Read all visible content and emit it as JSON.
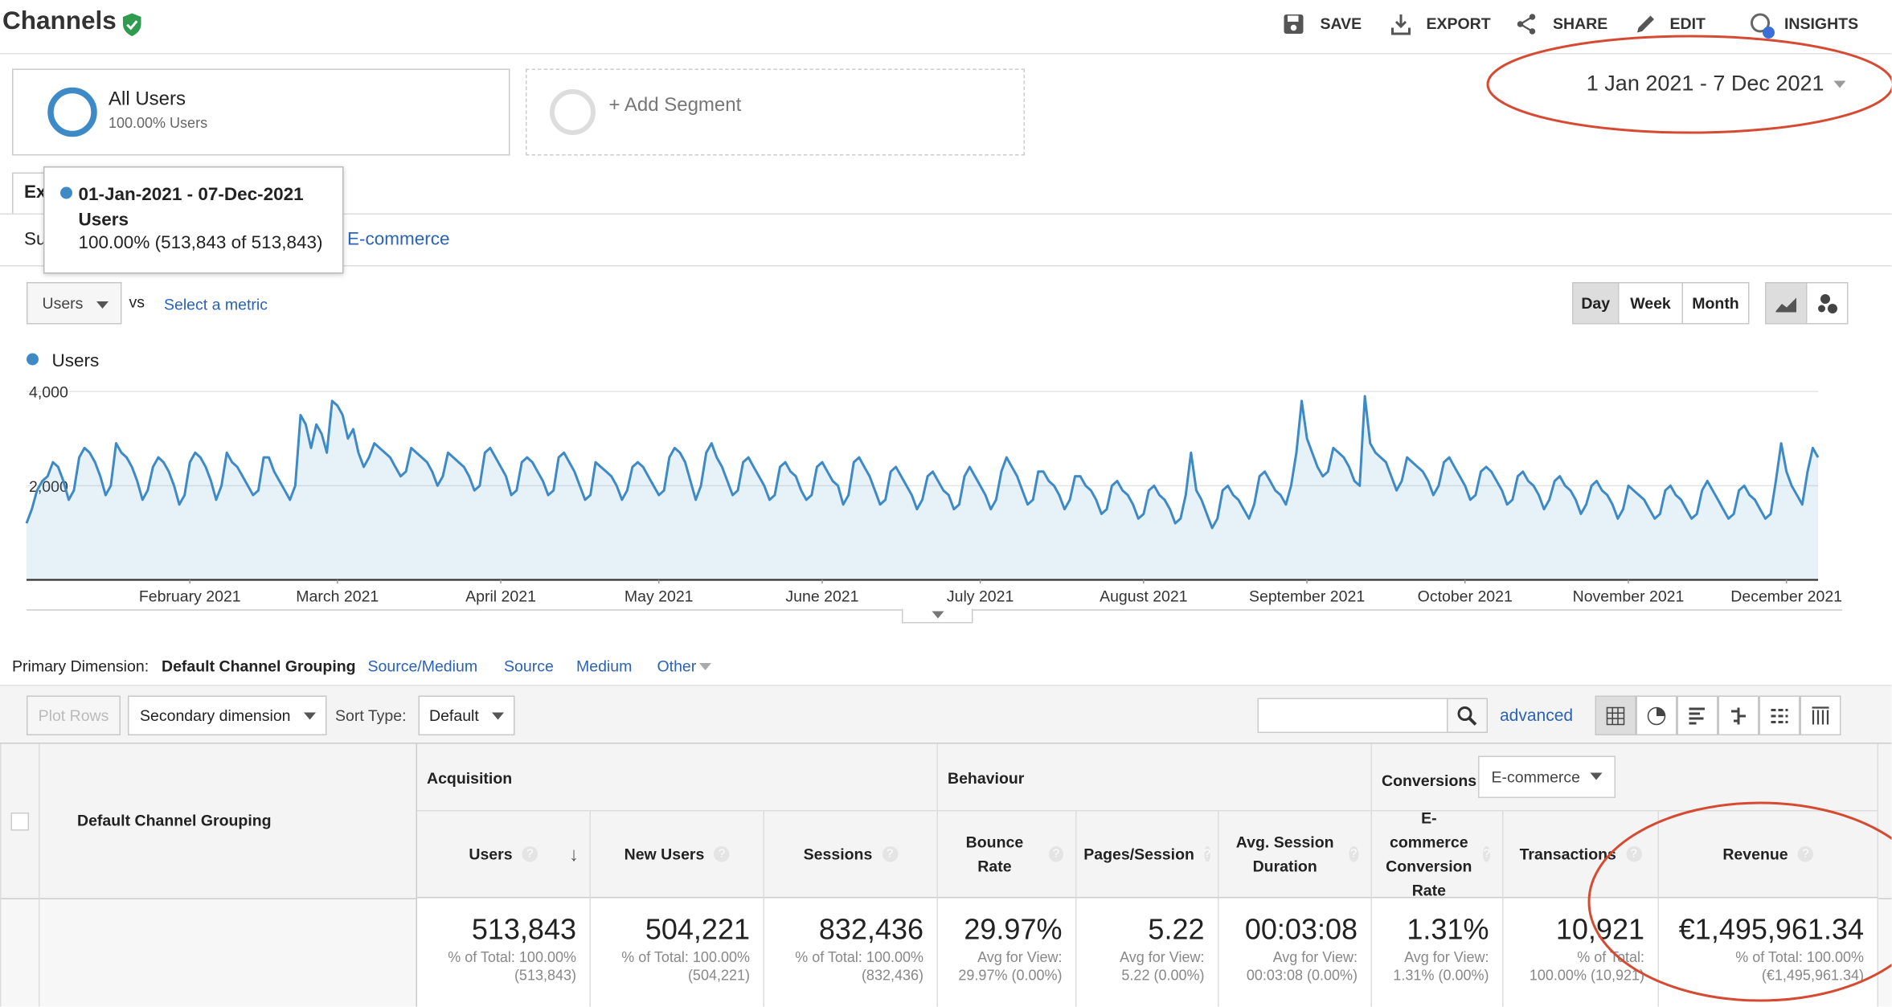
{
  "header": {
    "title": "Channels",
    "actions": [
      "SAVE",
      "EXPORT",
      "SHARE",
      "EDIT",
      "INSIGHTS"
    ]
  },
  "segments": [
    {
      "name": "All Users",
      "detail": "100.00% Users"
    }
  ],
  "add_segment": "+ Add Segment",
  "date_range": "1 Jan 2021 - 7 Dec 2021",
  "tabs": [
    "Ex"
  ],
  "subtabs": [
    "Su",
    "E-commerce"
  ],
  "tooltip": {
    "date": "01-Jan-2021 - 07-Dec-2021",
    "metric": "Users",
    "value": "100.00% (513,843 of 513,843)"
  },
  "chart_controls": {
    "metric": "Users",
    "vs": "vs",
    "select_metric": "Select a metric",
    "granularity": [
      "Day",
      "Week",
      "Month"
    ]
  },
  "chart_data": {
    "type": "line",
    "series": [
      {
        "name": "Users",
        "color": "#3d8ac7",
        "values": [
          1200,
          1500,
          1900,
          2100,
          2200,
          2500,
          2400,
          2100,
          1700,
          1900,
          2600,
          2800,
          2700,
          2500,
          2200,
          1800,
          2000,
          2900,
          2700,
          2600,
          2400,
          2100,
          1700,
          1900,
          2400,
          2600,
          2500,
          2300,
          2000,
          1600,
          1800,
          2500,
          2700,
          2600,
          2400,
          2100,
          1700,
          2000,
          2700,
          2500,
          2400,
          2200,
          2000,
          1800,
          1900,
          2600,
          2600,
          2300,
          2100,
          1900,
          1700,
          2000,
          3500,
          3300,
          2800,
          3300,
          3100,
          2700,
          3800,
          3700,
          3500,
          3000,
          3200,
          2700,
          2400,
          2600,
          2900,
          2800,
          2700,
          2600,
          2400,
          2200,
          2300,
          2800,
          2700,
          2600,
          2500,
          2300,
          2000,
          2200,
          2700,
          2600,
          2500,
          2400,
          2200,
          1900,
          2000,
          2700,
          2800,
          2600,
          2400,
          2200,
          1800,
          1900,
          2500,
          2600,
          2500,
          2300,
          2100,
          1800,
          1900,
          2600,
          2700,
          2500,
          2300,
          2000,
          1700,
          1800,
          2500,
          2400,
          2300,
          2200,
          2000,
          1700,
          1900,
          2400,
          2500,
          2400,
          2200,
          2000,
          1800,
          1900,
          2600,
          2800,
          2700,
          2500,
          2100,
          1700,
          2000,
          2700,
          2900,
          2600,
          2400,
          2100,
          1800,
          1900,
          2500,
          2600,
          2400,
          2200,
          2000,
          1700,
          1800,
          2400,
          2500,
          2300,
          2200,
          1900,
          1700,
          1800,
          2400,
          2500,
          2300,
          2100,
          2000,
          1600,
          1800,
          2500,
          2600,
          2400,
          2200,
          1900,
          1600,
          1700,
          2300,
          2400,
          2200,
          2000,
          1800,
          1500,
          1700,
          2200,
          2300,
          2100,
          1900,
          1800,
          1500,
          1600,
          2200,
          2400,
          2200,
          2000,
          1800,
          1500,
          1700,
          2300,
          2600,
          2400,
          2200,
          1900,
          1600,
          1700,
          2300,
          2300,
          2100,
          2000,
          1800,
          1500,
          1700,
          2200,
          2200,
          2000,
          1900,
          1700,
          1400,
          1500,
          2000,
          2100,
          1900,
          1800,
          1600,
          1300,
          1400,
          1900,
          2000,
          1800,
          1700,
          1500,
          1200,
          1300,
          1800,
          2700,
          1900,
          1700,
          1400,
          1100,
          1300,
          1900,
          2000,
          1800,
          1700,
          1500,
          1300,
          1600,
          2200,
          2300,
          2100,
          1900,
          1800,
          1600,
          2000,
          2700,
          3800,
          3000,
          2700,
          2400,
          2200,
          2300,
          2800,
          2700,
          2600,
          2400,
          2100,
          2000,
          3900,
          2900,
          2700,
          2600,
          2500,
          2200,
          1900,
          2100,
          2600,
          2500,
          2400,
          2300,
          2100,
          1800,
          2000,
          2500,
          2600,
          2400,
          2200,
          2000,
          1700,
          1800,
          2300,
          2400,
          2300,
          2100,
          1900,
          1600,
          1700,
          2200,
          2300,
          2100,
          2000,
          1800,
          1500,
          1700,
          2100,
          2200,
          2000,
          1900,
          1700,
          1400,
          1600,
          2000,
          2100,
          1900,
          1800,
          1600,
          1300,
          1500,
          2000,
          1900,
          1800,
          1700,
          1500,
          1300,
          1400,
          1900,
          2000,
          1800,
          1700,
          1500,
          1300,
          1400,
          1900,
          2100,
          1900,
          1700,
          1500,
          1300,
          1400,
          1900,
          2000,
          1800,
          1700,
          1500,
          1300,
          1400,
          2100,
          2900,
          2300,
          2000,
          1800,
          1600,
          2300,
          2800,
          2600
        ]
      }
    ],
    "xlim": [
      0,
      340
    ],
    "xticks": [
      {
        "value": 31,
        "label": "February 2021"
      },
      {
        "value": 59,
        "label": "March 2021"
      },
      {
        "value": 90,
        "label": "April 2021"
      },
      {
        "value": 120,
        "label": "May 2021"
      },
      {
        "value": 151,
        "label": "June 2021"
      },
      {
        "value": 181,
        "label": "July 2021"
      },
      {
        "value": 212,
        "label": "August 2021"
      },
      {
        "value": 243,
        "label": "September 2021"
      },
      {
        "value": 273,
        "label": "October 2021"
      },
      {
        "value": 304,
        "label": "November 2021"
      },
      {
        "value": 334,
        "label": "December 2021"
      }
    ],
    "ylim": [
      0,
      4250
    ],
    "yticks": [
      {
        "value": 2000,
        "label": "2,000"
      },
      {
        "value": 4000,
        "label": "4,000"
      }
    ],
    "grid": true
  },
  "dimension": {
    "label": "Primary Dimension:",
    "options": [
      "Default Channel Grouping",
      "Source/Medium",
      "Source",
      "Medium",
      "Other"
    ]
  },
  "toolbar": {
    "plot_rows": "Plot Rows",
    "secondary": "Secondary dimension",
    "sort_label": "Sort Type:",
    "sort": "Default",
    "advanced": "advanced"
  },
  "table": {
    "groups": [
      "Acquisition",
      "Behaviour",
      "Conversions"
    ],
    "conversion_select": "E-commerce",
    "dimension_header": "Default Channel Grouping",
    "columns": [
      "Users",
      "New Users",
      "Sessions",
      "Bounce Rate",
      "Pages/Session",
      "Avg. Session Duration",
      "E-commerce Conversion Rate",
      "Transactions",
      "Revenue"
    ],
    "totals": [
      {
        "value": "513,843",
        "notes": [
          "% of Total: 100.00%",
          "(513,843)"
        ]
      },
      {
        "value": "504,221",
        "notes": [
          "% of Total: 100.00%",
          "(504,221)"
        ]
      },
      {
        "value": "832,436",
        "notes": [
          "% of Total: 100.00%",
          "(832,436)"
        ]
      },
      {
        "value": "29.97%",
        "notes": [
          "Avg for View:",
          "29.97% (0.00%)"
        ]
      },
      {
        "value": "5.22",
        "notes": [
          "Avg for View:",
          "5.22 (0.00%)"
        ]
      },
      {
        "value": "00:03:08",
        "notes": [
          "Avg for View:",
          "00:03:08 (0.00%)"
        ]
      },
      {
        "value": "1.31%",
        "notes": [
          "Avg for View:",
          "1.31% (0.00%)"
        ]
      },
      {
        "value": "10,921",
        "notes": [
          "% of Total:",
          "100.00% (10,921)"
        ]
      },
      {
        "value": "€1,495,961.34",
        "notes": [
          "% of Total: 100.00%",
          "(€1,495,961.34)"
        ]
      }
    ]
  }
}
